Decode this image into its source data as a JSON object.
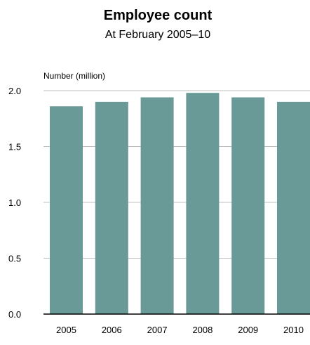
{
  "chart_data": {
    "type": "bar",
    "title": "Employee count",
    "subtitle": "At February 2005–10",
    "ylabel": "Number (million)",
    "xlabel": "",
    "categories": [
      "2005",
      "2006",
      "2007",
      "2008",
      "2009",
      "2010"
    ],
    "values": [
      1.86,
      1.9,
      1.94,
      1.98,
      1.94,
      1.9
    ],
    "ylim": [
      0,
      2.0
    ],
    "yticks": [
      0.0,
      0.5,
      1.0,
      1.5,
      2.0
    ],
    "ytick_labels": [
      "0.0",
      "0.5",
      "1.0",
      "1.5",
      "2.0"
    ],
    "grid": true,
    "legend": "none",
    "colors": {
      "bar": "#6a9a98",
      "grid": "#bfbfbf",
      "axis": "#000000",
      "text": "#000000"
    }
  }
}
